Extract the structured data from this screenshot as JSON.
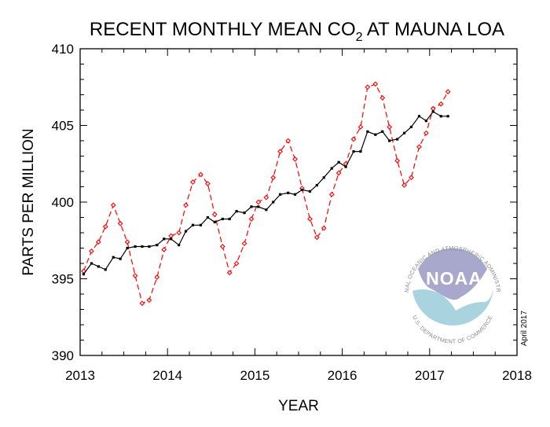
{
  "chart_data": {
    "type": "line",
    "title_main": "RECENT MONTHLY MEAN CO",
    "title_sub": "2",
    "title_tail": " AT MAUNA LOA",
    "xlabel": "YEAR",
    "ylabel": "PARTS PER MILLION",
    "xlim": [
      2013,
      2018
    ],
    "ylim": [
      390,
      410
    ],
    "xticks": [
      2013,
      2014,
      2015,
      2016,
      2017,
      2018
    ],
    "yticks": [
      390,
      395,
      400,
      405,
      410
    ],
    "grid": false,
    "date_note": "April 2017",
    "series": [
      {
        "style": "dashed-diamond",
        "color": "#ff0000",
        "x": [
          2013.04,
          2013.13,
          2013.21,
          2013.29,
          2013.38,
          2013.46,
          2013.54,
          2013.63,
          2013.71,
          2013.79,
          2013.88,
          2013.96,
          2014.04,
          2014.13,
          2014.21,
          2014.29,
          2014.38,
          2014.46,
          2014.54,
          2014.63,
          2014.71,
          2014.79,
          2014.88,
          2014.96,
          2015.04,
          2015.13,
          2015.21,
          2015.29,
          2015.38,
          2015.46,
          2015.54,
          2015.63,
          2015.71,
          2015.79,
          2015.88,
          2015.96,
          2016.04,
          2016.13,
          2016.21,
          2016.29,
          2016.38,
          2016.46,
          2016.54,
          2016.63,
          2016.71,
          2016.79,
          2016.88,
          2016.96,
          2017.04,
          2017.13,
          2017.21
        ],
        "values": [
          395.5,
          396.8,
          397.4,
          398.4,
          399.8,
          398.6,
          397.4,
          395.2,
          393.4,
          393.6,
          395.1,
          396.9,
          397.8,
          398.0,
          399.8,
          401.3,
          401.8,
          401.2,
          399.2,
          397.1,
          395.4,
          396.0,
          397.3,
          398.9,
          400.0,
          400.3,
          401.6,
          403.3,
          404.0,
          402.8,
          400.9,
          398.9,
          397.7,
          398.3,
          400.5,
          401.9,
          402.5,
          404.1,
          404.9,
          407.5,
          407.7,
          406.8,
          404.9,
          402.7,
          401.1,
          401.6,
          403.6,
          404.5,
          406.1,
          406.4,
          407.2
        ]
      },
      {
        "style": "solid-square",
        "color": "#000000",
        "x": [
          2013.04,
          2013.13,
          2013.21,
          2013.29,
          2013.38,
          2013.46,
          2013.54,
          2013.63,
          2013.71,
          2013.79,
          2013.88,
          2013.96,
          2014.04,
          2014.13,
          2014.21,
          2014.29,
          2014.38,
          2014.46,
          2014.54,
          2014.63,
          2014.71,
          2014.79,
          2014.88,
          2014.96,
          2015.04,
          2015.13,
          2015.21,
          2015.29,
          2015.38,
          2015.46,
          2015.54,
          2015.63,
          2015.71,
          2015.79,
          2015.88,
          2015.96,
          2016.04,
          2016.13,
          2016.21,
          2016.29,
          2016.38,
          2016.46,
          2016.54,
          2016.63,
          2016.71,
          2016.79,
          2016.88,
          2016.96,
          2017.04,
          2017.13,
          2017.21
        ],
        "values": [
          395.3,
          396.0,
          395.8,
          395.6,
          396.4,
          396.3,
          397.0,
          397.1,
          397.1,
          397.1,
          397.2,
          397.6,
          397.6,
          397.2,
          398.1,
          398.5,
          398.5,
          399.0,
          398.7,
          398.9,
          398.9,
          399.4,
          399.3,
          399.7,
          399.7,
          399.5,
          400.0,
          400.5,
          400.6,
          400.5,
          400.8,
          400.7,
          401.1,
          401.6,
          402.2,
          402.6,
          402.3,
          403.3,
          403.3,
          404.6,
          404.4,
          404.6,
          404.0,
          404.1,
          404.5,
          404.9,
          405.6,
          405.3,
          405.9,
          405.6,
          405.6
        ]
      }
    ]
  },
  "logo": {
    "word": "NOAA",
    "ring_top": "NATIONAL OCEANIC AND ATMOSPHERIC ADMINISTRATION",
    "ring_bottom": "U.S. DEPARTMENT OF COMMERCE"
  }
}
